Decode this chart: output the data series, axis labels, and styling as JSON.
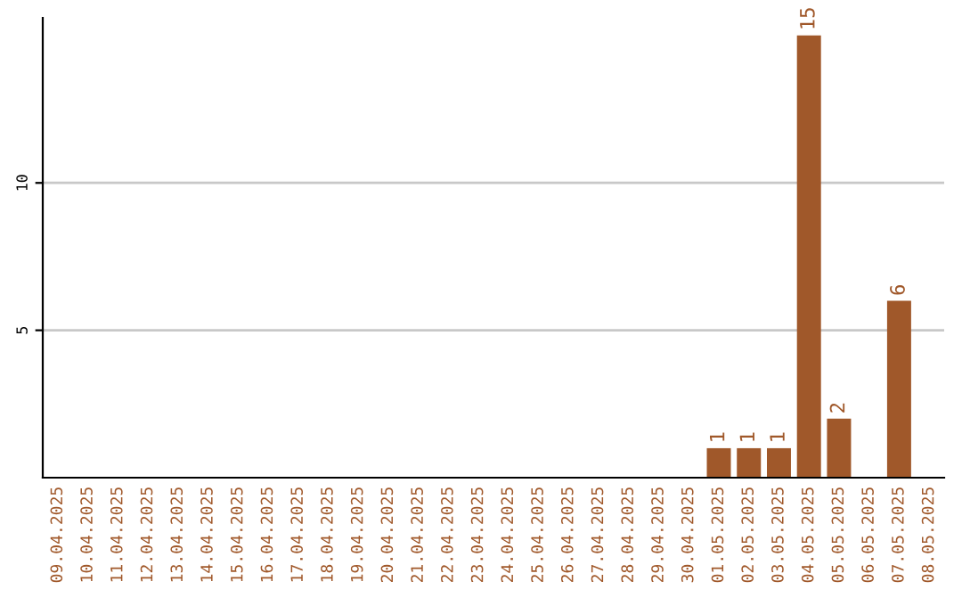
{
  "chart_data": {
    "type": "bar",
    "categories": [
      "09.04.2025",
      "10.04.2025",
      "11.04.2025",
      "12.04.2025",
      "13.04.2025",
      "14.04.2025",
      "15.04.2025",
      "16.04.2025",
      "17.04.2025",
      "18.04.2025",
      "19.04.2025",
      "20.04.2025",
      "21.04.2025",
      "22.04.2025",
      "23.04.2025",
      "24.04.2025",
      "25.04.2025",
      "26.04.2025",
      "27.04.2025",
      "28.04.2025",
      "29.04.2025",
      "30.04.2025",
      "01.05.2025",
      "02.05.2025",
      "03.05.2025",
      "04.05.2025",
      "05.05.2025",
      "06.05.2025",
      "07.05.2025",
      "08.05.2025"
    ],
    "values": [
      0,
      0,
      0,
      0,
      0,
      0,
      0,
      0,
      0,
      0,
      0,
      0,
      0,
      0,
      0,
      0,
      0,
      0,
      0,
      0,
      0,
      0,
      1,
      1,
      1,
      15,
      2,
      0,
      6,
      0
    ],
    "value_labels": [
      null,
      null,
      null,
      null,
      null,
      null,
      null,
      null,
      null,
      null,
      null,
      null,
      null,
      null,
      null,
      null,
      null,
      null,
      null,
      null,
      null,
      null,
      "1",
      "1",
      "1",
      "15",
      "2",
      null,
      "6",
      null
    ],
    "color": "#a0582a",
    "ylim": [
      0,
      15.6
    ],
    "yticks": [
      5,
      10
    ],
    "grid": "y"
  }
}
